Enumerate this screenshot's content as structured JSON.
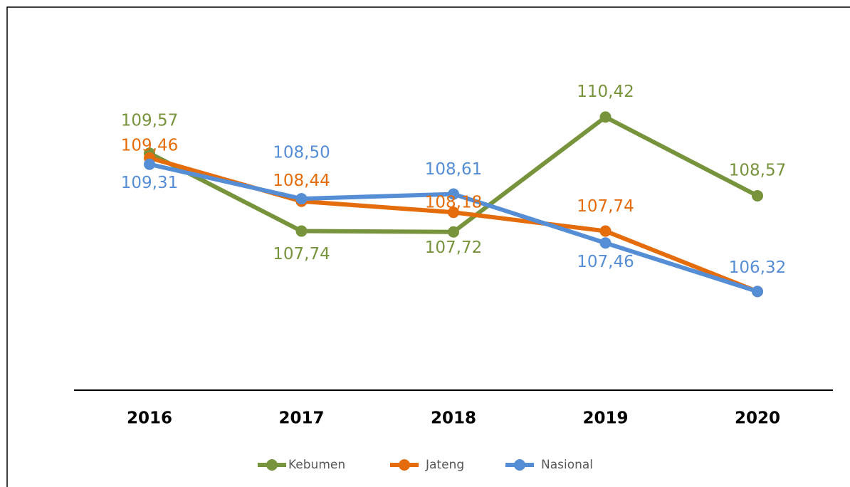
{
  "chart_data": {
    "type": "line",
    "categories": [
      "2016",
      "2017",
      "2018",
      "2019",
      "2020"
    ],
    "ylim": [
      104,
      112
    ],
    "series": [
      {
        "name": "Kebumen",
        "color": "#77933c",
        "values": [
          109.57,
          107.74,
          107.72,
          110.42,
          108.57
        ],
        "value_labels": [
          "109,57",
          "107,74",
          "107,72",
          "110,42",
          "108,57"
        ]
      },
      {
        "name": "Jateng",
        "color": "#e46c0a",
        "values": [
          109.46,
          108.44,
          108.18,
          107.74,
          106.32
        ],
        "value_labels": [
          "109,46",
          "108,44",
          "108,18",
          "107,74",
          null
        ]
      },
      {
        "name": "Nasional",
        "color": "#558ed5",
        "values": [
          109.31,
          108.5,
          108.61,
          107.46,
          106.32
        ],
        "value_labels": [
          "109,31",
          "108,50",
          "108,61",
          "107,46",
          "106,32"
        ]
      }
    ],
    "legend": "bottom"
  }
}
